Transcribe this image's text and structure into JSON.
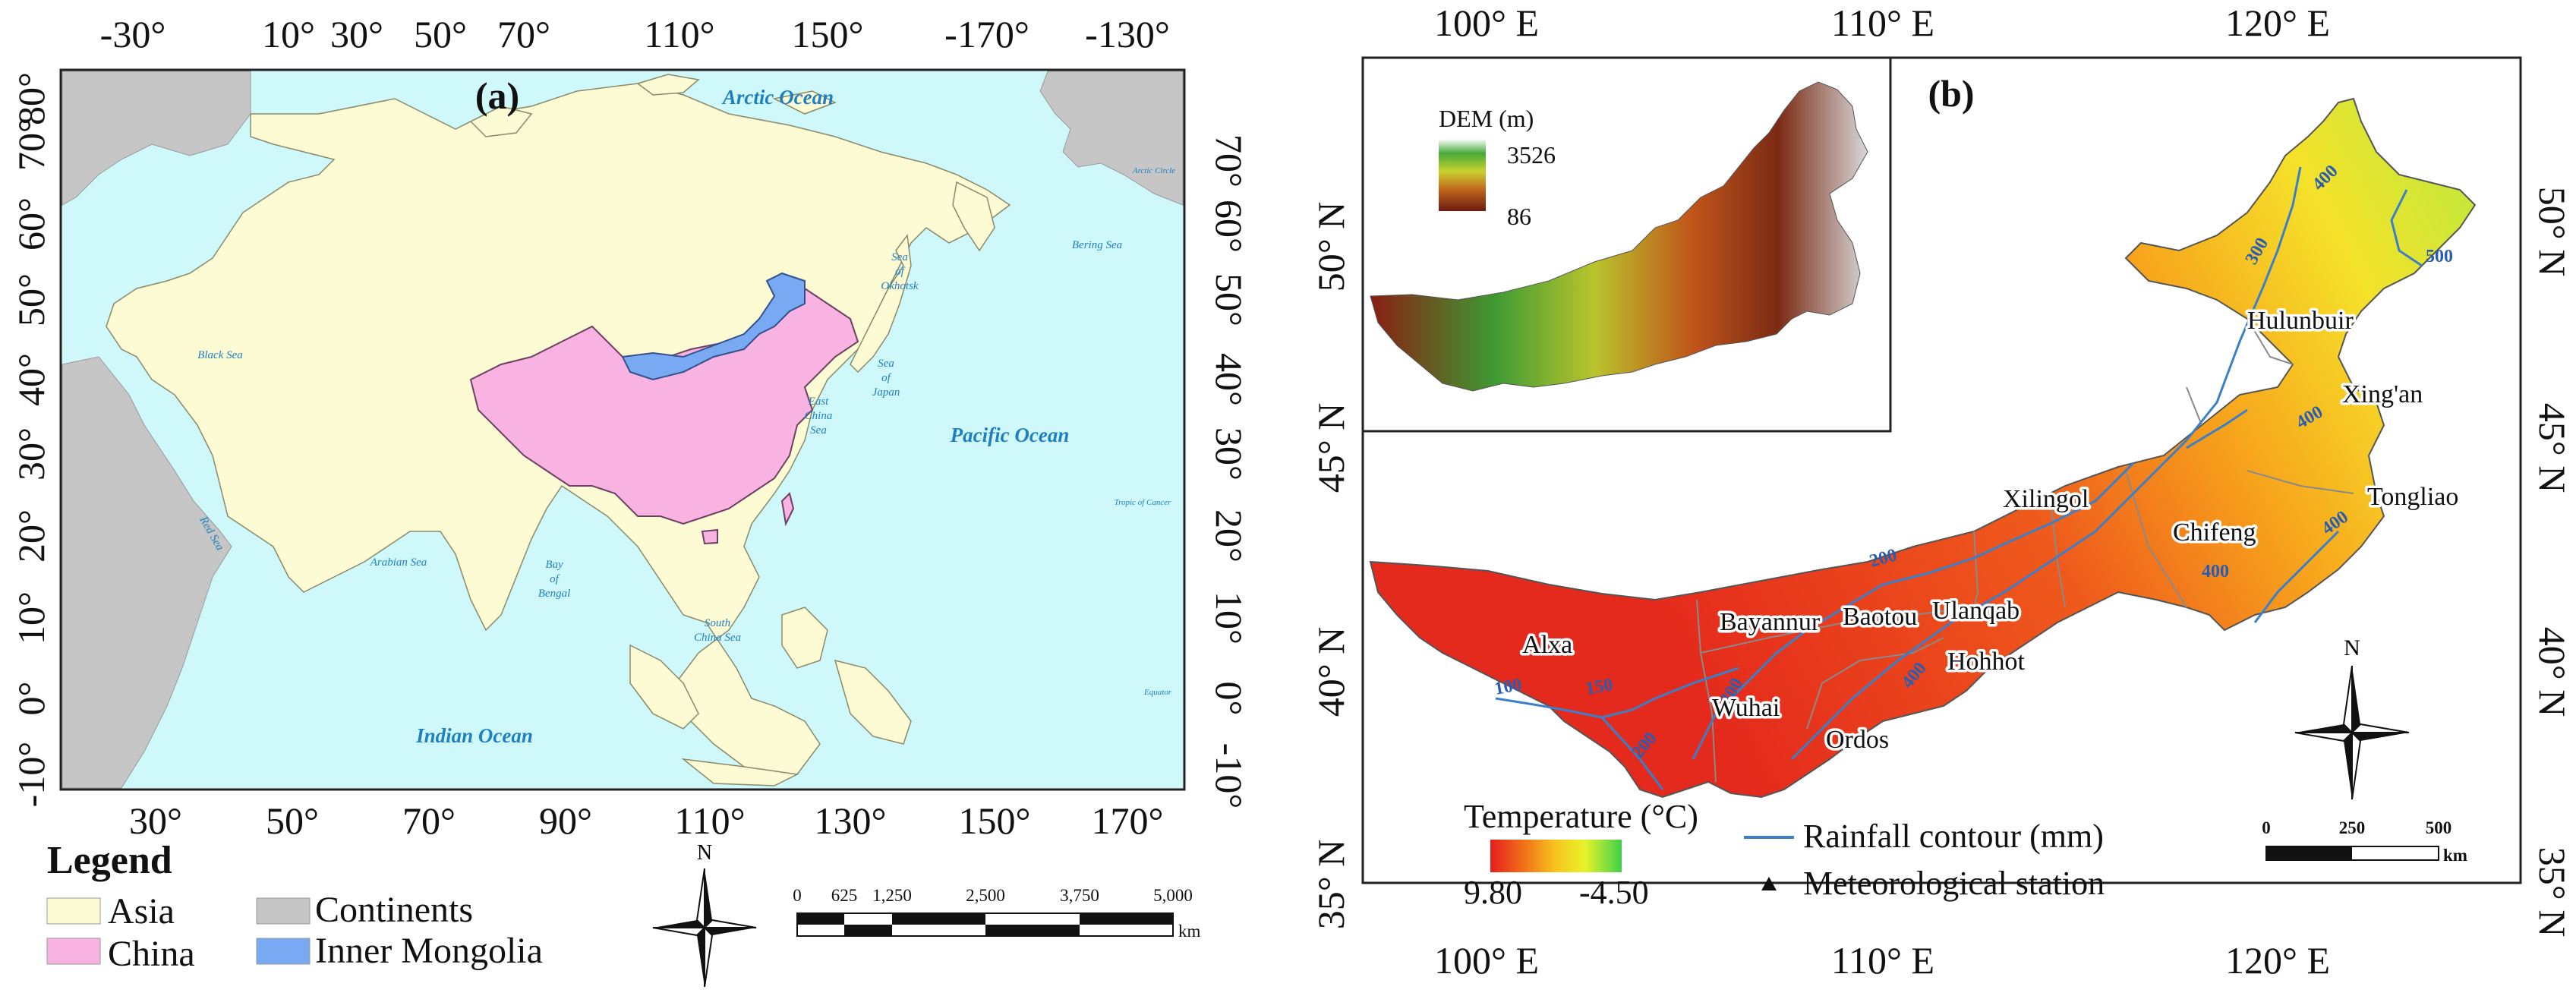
{
  "panel_a": {
    "label": "(a)",
    "top_ticks": [
      "-30°",
      "10°",
      "30°",
      "50°",
      "70°",
      "110°",
      "150°",
      "-170°",
      "-130°"
    ],
    "bottom_ticks": [
      "30°",
      "50°",
      "70°",
      "90°",
      "110°",
      "130°",
      "150°",
      "170°"
    ],
    "left_ticks": [
      "80°",
      "70°",
      "60°",
      "50°",
      "40°",
      "30°",
      "20°",
      "10°",
      "0°",
      "-10°"
    ],
    "right_ticks": [
      "70°",
      "60°",
      "50°",
      "40°",
      "30°",
      "20°",
      "10°",
      "0°",
      "-10°"
    ],
    "ocean_labels": {
      "arctic": "Arctic Ocean",
      "pacific": "Pacific Ocean",
      "indian": "Indian Ocean",
      "arabian": "Arabian Sea",
      "black": "Black Sea",
      "red": "Red Sea",
      "bering": "Bering Sea",
      "okhotsk": [
        "Sea",
        "of",
        "Okhotsk"
      ],
      "japan": [
        "Sea",
        "of",
        "Japan"
      ],
      "east_china": [
        "East",
        "China",
        "Sea"
      ],
      "bengal": [
        "Bay",
        "of",
        "Bengal"
      ],
      "south_china": [
        "South",
        "China Sea"
      ],
      "arctic_circle": "Arctic Circle",
      "tropic": "Tropic of Cancer",
      "equator": "Equator"
    },
    "legend": {
      "title": "Legend",
      "items": [
        {
          "label": "Asia",
          "color": "#fdfbd3"
        },
        {
          "label": "China",
          "color": "#f9b3e3"
        },
        {
          "label": "Continents",
          "color": "#c6c6c6"
        },
        {
          "label": "Inner Mongolia",
          "color": "#79a9f2"
        }
      ]
    },
    "north_label": "N",
    "scale": {
      "labels": [
        "0",
        "625",
        "1,250",
        "2,500",
        "3,750",
        "5,000"
      ],
      "unit": "km"
    },
    "colors": {
      "ocean": "#cff8fb",
      "asia": "#fdfbd3",
      "china": "#f9b3e3",
      "continents": "#c6c6c6",
      "inner_mongolia": "#79a9f2"
    }
  },
  "panel_b": {
    "label": "(b)",
    "top_ticks": [
      "100° E",
      "110° E",
      "120° E"
    ],
    "bottom_ticks": [
      "100° E",
      "110° E",
      "120° E"
    ],
    "left_ticks": [
      "50° N",
      "45° N",
      "40° N",
      "35° N"
    ],
    "right_ticks": [
      "50° N",
      "45° N",
      "40° N",
      "35° N"
    ],
    "dem": {
      "title": "DEM (m)",
      "max": "3526",
      "min": "86"
    },
    "cities": [
      "Hulunbuir",
      "Xing'an",
      "Tongliao",
      "Chifeng",
      "Xilingol",
      "Ulanqab",
      "Baotou",
      "Bayannur",
      "Hohhot",
      "Alxa",
      "Wuhai",
      "Ordos"
    ],
    "contour_labels": [
      "400",
      "500",
      "300",
      "400",
      "400",
      "400",
      "200",
      "100",
      "150",
      "200",
      "300",
      "400"
    ],
    "legend": {
      "temp_title": "Temperature (°C)",
      "temp_max": "9.80",
      "temp_min": "-4.50",
      "rainfall": "Rainfall contour (mm)",
      "station": "Meteorological station"
    },
    "north_label": "N",
    "scale": {
      "labels": [
        "0",
        "250",
        "500"
      ],
      "unit": "km"
    },
    "colors": {
      "hot": "#e8281c",
      "warm": "#f7a21a",
      "mid": "#f4ee2a",
      "cool": "#48d448",
      "contour": "#3a7fc8"
    }
  }
}
